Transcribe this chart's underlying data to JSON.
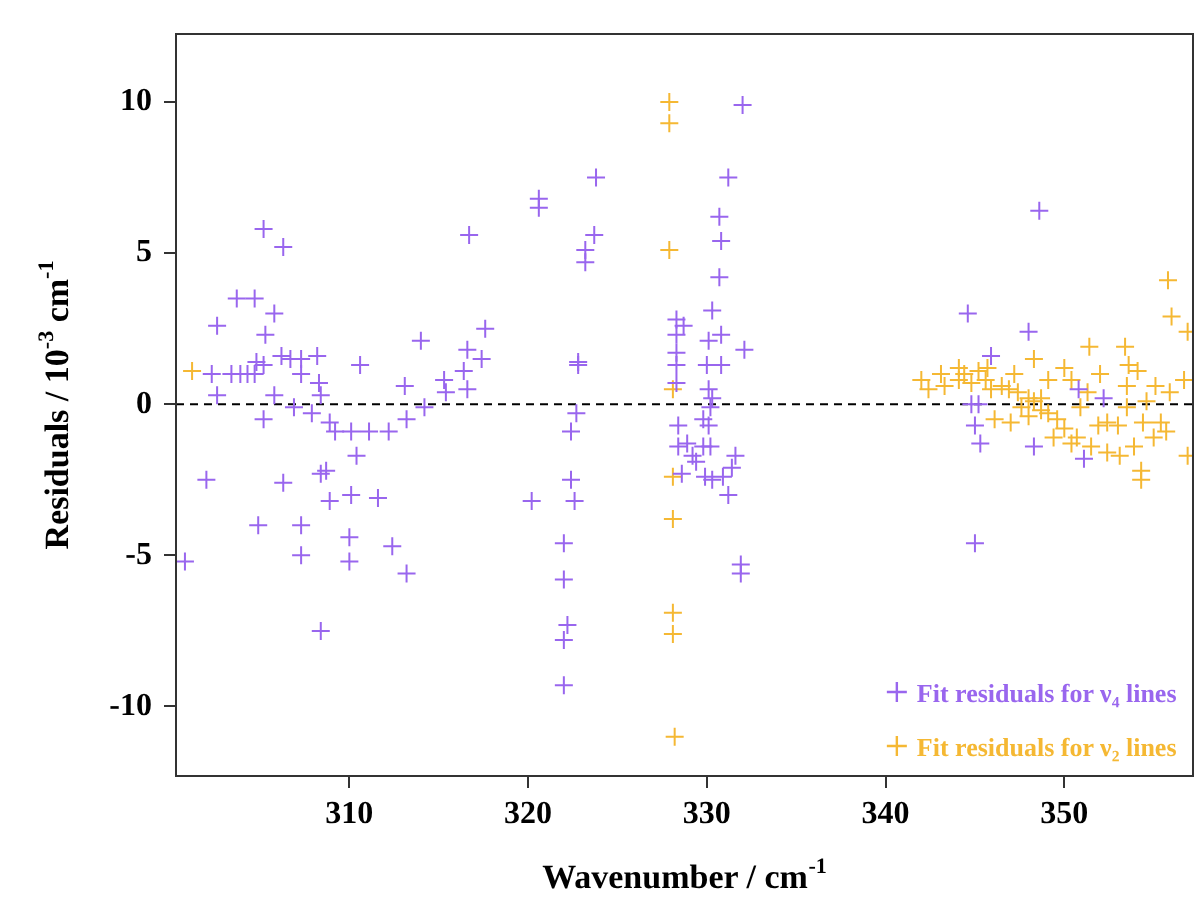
{
  "chart_data": {
    "type": "scatter",
    "xlabel": "Wavenumber / cm$^{-1}$",
    "ylabel": "Residuals / 10$^{-3}$ cm$^{-1}$",
    "xlim": [
      300.3,
      357.2
    ],
    "ylim": [
      -12.3,
      12.25
    ],
    "xticks": [
      310,
      320,
      330,
      340,
      350
    ],
    "yticks": [
      -10,
      -5,
      0,
      5,
      10
    ],
    "marker": "cross",
    "grid": false,
    "legend": "bottom right",
    "ref_lines": [
      {
        "axis": "y",
        "value": 0,
        "color": "#000000",
        "line_style": "dashed"
      }
    ],
    "series": [
      {
        "name": "Fit residuals for ν₄ lines",
        "color": "#9966ee",
        "x": [
          305.2,
          306.3,
          303.7,
          304.7,
          305.8,
          302.6,
          305.3,
          310.6,
          314.0,
          316.7,
          317.6,
          316.6,
          317.4,
          316.4,
          316.6,
          315.3,
          315.4,
          313.1,
          314.2,
          313.2,
          312.2,
          311.1,
          310.1,
          309.2,
          308.9,
          307.9,
          306.9,
          305.2,
          302.6,
          302.3,
          303.4,
          303.9,
          304.3,
          304.7,
          304.8,
          305.2,
          306.2,
          306.7,
          307.3,
          308.2,
          307.3,
          308.3,
          308.4,
          305.8,
          310.4,
          302.0,
          306.3,
          308.7,
          308.4,
          308.9,
          310.1,
          311.6,
          304.9,
          307.3,
          310.0,
          307.3,
          310.0,
          312.4,
          313.2,
          300.8,
          308.4,
          320.6,
          320.6,
          323.8,
          323.7,
          323.2,
          323.2,
          322.8,
          322.8,
          322.7,
          322.4,
          322.4,
          322.6,
          320.2,
          322.0,
          322.0,
          322.2,
          322.0,
          322.0,
          332.0,
          331.2,
          330.7,
          330.8,
          330.7,
          330.3,
          328.3,
          328.3,
          328.3,
          328.3,
          328.3,
          328.7,
          330.1,
          330.8,
          330.0,
          330.8,
          332.1,
          330.1,
          330.3,
          330.2,
          329.8,
          330.1,
          328.4,
          328.4,
          328.9,
          329.2,
          329.4,
          329.8,
          330.2,
          331.6,
          331.4,
          328.6,
          329.9,
          330.3,
          330.9,
          331.2,
          331.9,
          331.9,
          348.6,
          344.6,
          348.0,
          345.9,
          350.8,
          344.8,
          345.2,
          345.0,
          345.3,
          348.3,
          351.1,
          352.2,
          345.0
        ],
        "values": [
          5.8,
          5.2,
          3.5,
          3.5,
          3.0,
          2.6,
          2.3,
          1.3,
          2.1,
          5.6,
          2.5,
          1.8,
          1.5,
          1.1,
          0.5,
          0.8,
          0.4,
          0.6,
          -0.1,
          -0.5,
          -0.9,
          -0.9,
          -0.9,
          -0.9,
          -0.6,
          -0.3,
          -0.1,
          -0.5,
          0.3,
          1.0,
          1.0,
          1.0,
          1.0,
          1.0,
          1.4,
          1.3,
          1.6,
          1.5,
          1.5,
          1.6,
          1.0,
          0.7,
          0.3,
          0.3,
          -1.7,
          -2.5,
          -2.6,
          -2.2,
          -2.3,
          -3.2,
          -3.0,
          -3.1,
          -4.0,
          -4.0,
          -4.4,
          -5.0,
          -5.2,
          -4.7,
          -5.6,
          -5.2,
          -7.5,
          6.8,
          6.5,
          7.5,
          5.6,
          5.1,
          4.7,
          1.4,
          1.3,
          -0.3,
          -0.9,
          -2.5,
          -3.2,
          -3.2,
          -4.6,
          -5.8,
          -7.3,
          -7.8,
          -9.3,
          9.9,
          7.5,
          6.2,
          5.4,
          4.2,
          3.1,
          2.8,
          2.3,
          1.7,
          1.3,
          0.7,
          2.6,
          2.1,
          2.3,
          1.3,
          1.3,
          1.8,
          0.5,
          0.2,
          -0.1,
          -0.5,
          -0.7,
          -0.7,
          -1.4,
          -1.3,
          -1.7,
          -1.9,
          -1.4,
          -1.4,
          -1.7,
          -2.1,
          -2.3,
          -2.4,
          -2.5,
          -2.4,
          -3.0,
          -5.3,
          -5.6,
          6.4,
          3.0,
          2.4,
          1.6,
          0.5,
          0.0,
          0.0,
          -0.7,
          -1.3,
          -1.4,
          -1.8,
          0.2,
          -4.6
        ]
      },
      {
        "name": "Fit residuals for ν₂ lines",
        "color": "#f5b833",
        "x": [
          301.2,
          327.9,
          327.9,
          327.9,
          328.1,
          328.1,
          328.1,
          328.1,
          328.1,
          328.2,
          355.8,
          356.0,
          356.9,
          356.9,
          354.3,
          354.3,
          351.4,
          353.4,
          353.6,
          354.1,
          356.7,
          355.1,
          342.0,
          342.4,
          343.1,
          343.3,
          344.1,
          344.1,
          344.4,
          344.8,
          345.2,
          345.6,
          345.9,
          346.5,
          346.9,
          347.4,
          348.0,
          348.3,
          348.7,
          346.1,
          347.0,
          348.0,
          349.1,
          349.6,
          350.0,
          349.4,
          350.4,
          350.7,
          351.5,
          351.9,
          352.4,
          353.0,
          352.4,
          353.1,
          353.9,
          354.4,
          355.4,
          355.7,
          355.0,
          348.3,
          350.0,
          350.4,
          351.3,
          352.0,
          353.5,
          354.6,
          355.9,
          345.7,
          347.2,
          349.1,
          347.6,
          348.7,
          350.9,
          353.5
        ],
        "values": [
          1.1,
          10.0,
          9.3,
          5.1,
          0.5,
          -2.4,
          -3.8,
          -6.9,
          -7.6,
          -11.0,
          4.1,
          2.9,
          2.4,
          -1.7,
          -2.5,
          -2.2,
          1.9,
          1.9,
          1.3,
          1.1,
          0.8,
          0.6,
          0.8,
          0.5,
          1.0,
          0.6,
          1.2,
          0.8,
          1.0,
          0.7,
          1.1,
          0.8,
          0.5,
          0.6,
          0.5,
          0.4,
          0.2,
          0.1,
          0.2,
          -0.5,
          -0.6,
          -0.4,
          -0.3,
          -0.5,
          -0.8,
          -1.1,
          -1.3,
          -1.1,
          -1.4,
          -0.7,
          -0.6,
          -0.7,
          -1.6,
          -1.7,
          -1.4,
          -0.6,
          -0.6,
          -0.9,
          -1.1,
          1.5,
          1.2,
          0.8,
          0.4,
          1.0,
          0.6,
          0.1,
          0.4,
          1.2,
          1.0,
          0.8,
          -0.1,
          -0.2,
          -0.1,
          -0.1
        ]
      }
    ]
  }
}
